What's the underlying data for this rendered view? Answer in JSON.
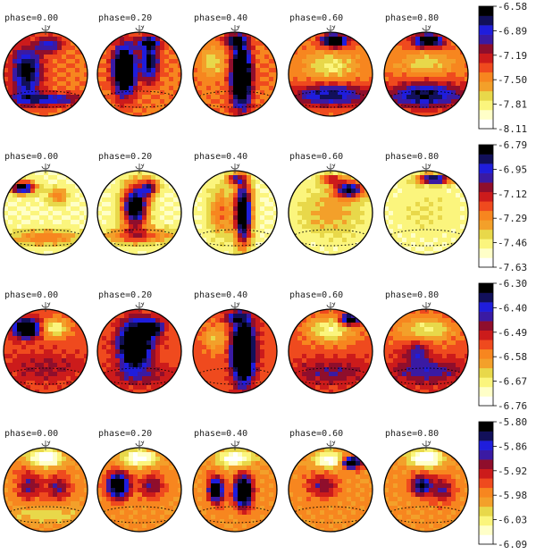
{
  "figure": {
    "description_none": "",
    "phases": [
      "phase=0.00",
      "phase=0.20",
      "phase=0.40",
      "phase=0.60",
      "phase=0.80"
    ],
    "colorbar_colors": [
      "#ffffff",
      "#ffffc8",
      "#fbf57d",
      "#e8d84a",
      "#f3a02a",
      "#f7861f",
      "#ef4a1e",
      "#cc1b1b",
      "#8f0e2c",
      "#3a1aa3",
      "#1f1ddc",
      "#12105a",
      "#000000"
    ],
    "rows": [
      {
        "scale_ticks": [
          "-6.58",
          "-6.89",
          "-7.19",
          "-7.50",
          "-7.81",
          "-8.11"
        ],
        "base": 0.45,
        "blobs": [
          [
            [
              -0.45,
              0.05,
              0.35,
              0.6,
              0.55
            ],
            [
              0.1,
              0.7,
              0.3,
              0.2,
              0.35
            ],
            [
              0.0,
              -0.6,
              0.8,
              0.15,
              0.4
            ]
          ],
          [
            [
              -0.35,
              0.1,
              0.25,
              0.55,
              0.95
            ],
            [
              0.25,
              0.3,
              0.2,
              0.45,
              0.55
            ],
            [
              0.2,
              0.75,
              0.3,
              0.15,
              0.4
            ]
          ],
          [
            [
              0.15,
              -0.05,
              0.22,
              0.7,
              1.0
            ],
            [
              0.0,
              0.8,
              0.25,
              0.15,
              0.45
            ],
            [
              -0.5,
              0.3,
              0.3,
              0.3,
              -0.2
            ]
          ],
          [
            [
              0.1,
              0.8,
              0.3,
              0.15,
              0.75
            ],
            [
              0.0,
              -0.5,
              0.9,
              0.25,
              0.45
            ],
            [
              0.0,
              0.2,
              0.6,
              0.3,
              -0.25
            ]
          ],
          [
            [
              0.05,
              0.8,
              0.35,
              0.15,
              0.7
            ],
            [
              0.0,
              -0.5,
              0.9,
              0.3,
              0.5
            ],
            [
              0.0,
              0.25,
              0.6,
              0.25,
              -0.2
            ]
          ]
        ]
      },
      {
        "scale_ticks": [
          "-6.79",
          "-6.95",
          "-7.12",
          "-7.29",
          "-7.46",
          "-7.63"
        ],
        "base": 0.15,
        "blobs": [
          [
            [
              -0.55,
              0.6,
              0.3,
              0.15,
              0.85
            ],
            [
              0.0,
              -0.6,
              0.9,
              0.2,
              0.3
            ],
            [
              0.3,
              0.4,
              0.25,
              0.2,
              0.3
            ]
          ],
          [
            [
              -0.1,
              0.15,
              0.3,
              0.5,
              0.95
            ],
            [
              0.25,
              0.6,
              0.2,
              0.2,
              0.6
            ],
            [
              0.0,
              -0.55,
              0.9,
              0.2,
              0.35
            ]
          ],
          [
            [
              0.2,
              0.0,
              0.2,
              0.75,
              1.0
            ],
            [
              -0.35,
              0.0,
              0.3,
              0.6,
              0.3
            ],
            [
              0.0,
              0.8,
              0.2,
              0.12,
              0.5
            ]
          ],
          [
            [
              0.45,
              0.55,
              0.35,
              0.2,
              0.75
            ],
            [
              0.0,
              0.0,
              0.8,
              0.6,
              0.2
            ],
            [
              0.0,
              0.8,
              0.25,
              0.12,
              0.45
            ]
          ],
          [
            [
              0.2,
              0.8,
              0.4,
              0.12,
              0.8
            ],
            [
              0.0,
              0.0,
              0.8,
              0.6,
              0.08
            ]
          ]
        ]
      },
      {
        "scale_ticks": [
          "-6.30",
          "-6.40",
          "-6.49",
          "-6.58",
          "-6.67",
          "-6.76"
        ],
        "base": 0.5,
        "blobs": [
          [
            [
              -0.45,
              0.55,
              0.3,
              0.2,
              0.85
            ],
            [
              0.2,
              0.55,
              0.35,
              0.2,
              -0.35
            ],
            [
              0.0,
              -0.4,
              0.9,
              0.35,
              0.15
            ]
          ],
          [
            [
              -0.1,
              0.15,
              0.35,
              0.5,
              0.95
            ],
            [
              0.3,
              0.55,
              0.25,
              0.2,
              0.55
            ],
            [
              0.0,
              -0.6,
              0.9,
              0.25,
              0.15
            ]
          ],
          [
            [
              0.2,
              0.0,
              0.25,
              0.7,
              1.0
            ],
            [
              -0.45,
              0.3,
              0.3,
              0.3,
              -0.2
            ],
            [
              0.0,
              0.8,
              0.25,
              0.12,
              0.3
            ]
          ],
          [
            [
              0.0,
              0.5,
              0.5,
              0.3,
              -0.35
            ],
            [
              0.45,
              0.75,
              0.2,
              0.12,
              0.7
            ],
            [
              0.0,
              -0.5,
              0.9,
              0.3,
              0.2
            ]
          ],
          [
            [
              -0.2,
              0.0,
              0.3,
              0.3,
              0.25
            ],
            [
              0.0,
              0.5,
              0.6,
              0.3,
              -0.3
            ],
            [
              0.0,
              -0.5,
              0.9,
              0.3,
              0.25
            ]
          ]
        ]
      },
      {
        "scale_ticks": [
          "-5.80",
          "-5.86",
          "-5.92",
          "-5.98",
          "-6.03",
          "-6.09"
        ],
        "base": 0.4,
        "blobs": [
          [
            [
              0.0,
              0.75,
              0.4,
              0.2,
              -0.45
            ],
            [
              -0.4,
              0.1,
              0.3,
              0.35,
              0.3
            ],
            [
              0.3,
              0.05,
              0.3,
              0.3,
              0.3
            ],
            [
              0.0,
              -0.6,
              0.9,
              0.2,
              -0.15
            ]
          ],
          [
            [
              -0.5,
              0.1,
              0.25,
              0.3,
              0.8
            ],
            [
              0.0,
              0.75,
              0.4,
              0.2,
              -0.4
            ],
            [
              0.3,
              0.1,
              0.3,
              0.3,
              0.3
            ]
          ],
          [
            [
              -0.45,
              0.0,
              0.18,
              0.3,
              0.7
            ],
            [
              0.2,
              -0.05,
              0.2,
              0.35,
              0.95
            ],
            [
              0.0,
              0.75,
              0.4,
              0.2,
              -0.4
            ]
          ],
          [
            [
              0.5,
              0.65,
              0.25,
              0.15,
              0.75
            ],
            [
              0.0,
              0.7,
              0.4,
              0.2,
              -0.4
            ],
            [
              -0.2,
              0.1,
              0.35,
              0.3,
              0.3
            ]
          ],
          [
            [
              0.0,
              0.75,
              0.4,
              0.2,
              -0.45
            ],
            [
              -0.1,
              0.1,
              0.25,
              0.25,
              0.55
            ],
            [
              0.4,
              0.0,
              0.25,
              0.3,
              0.3
            ]
          ]
        ]
      }
    ]
  }
}
